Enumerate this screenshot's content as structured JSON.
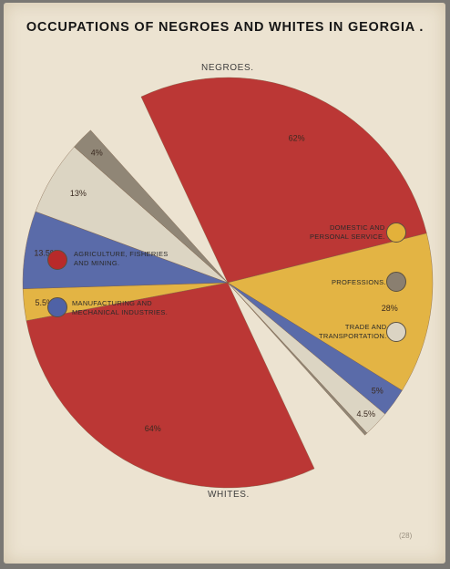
{
  "title": "OCCUPATIONS OF NEGROES AND WHITES IN GEORGIA .",
  "colors": {
    "agriculture": "#b82a2a",
    "domestic": "#e3b13a",
    "manufacturing": "#4f62a6",
    "trade": "#dbd4c3",
    "professions": "#8a7f70",
    "paper": "#ece3d1"
  },
  "legend": {
    "agriculture": "AGRICULTURE, FISHERIES\nAND MINING.",
    "manufacturing": "MANUFACTURING AND\nMECHANICAL INDUSTRIES.",
    "domestic": "DOMESTIC AND\nPERSONAL SERVICE.",
    "professions": "PROFESSIONS.",
    "trade": "TRADE AND\nTRANSPORTATION."
  },
  "catalog_note": "(28)",
  "chart_data": {
    "type": "pie",
    "title": "OCCUPATIONS OF NEGROES AND WHITES IN GEORGIA .",
    "categories": [
      "Agriculture, fisheries and mining",
      "Domestic and personal service",
      "Manufacturing and mechanical industries",
      "Trade and transportation",
      "Professions"
    ],
    "groups": [
      {
        "name": "NEGROES.",
        "slices": [
          {
            "category": "agriculture",
            "value": 62,
            "label": "62%"
          },
          {
            "category": "domestic",
            "value": 28,
            "label": "28%"
          },
          {
            "category": "manufacturing",
            "value": 5,
            "label": "5%"
          },
          {
            "category": "trade",
            "value": 4.5,
            "label": "4.5%"
          },
          {
            "category": "professions",
            "value": 0.5,
            "label": ""
          }
        ]
      },
      {
        "name": "WHITES.",
        "slices": [
          {
            "category": "agriculture",
            "value": 64,
            "label": "64%"
          },
          {
            "category": "domestic",
            "value": 5.5,
            "label": "5.5%"
          },
          {
            "category": "manufacturing",
            "value": 13.5,
            "label": "13.5%"
          },
          {
            "category": "trade",
            "value": 13,
            "label": "13%"
          },
          {
            "category": "professions",
            "value": 4,
            "label": "4%"
          }
        ]
      }
    ],
    "legend_position": "sides"
  }
}
